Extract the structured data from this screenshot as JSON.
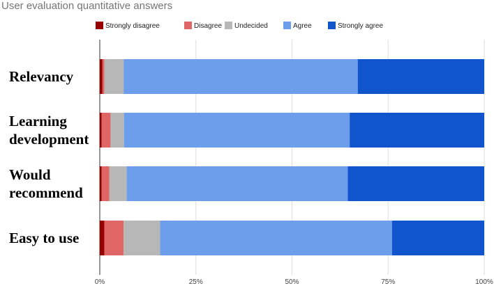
{
  "chart_data": {
    "type": "bar",
    "orientation": "horizontal",
    "stacked": true,
    "percent": true,
    "title": "User evaluation quantitative answers",
    "categories": [
      [
        "Relevancy"
      ],
      [
        "Learning",
        "development"
      ],
      [
        "Would",
        "recommend"
      ],
      [
        "Easy to use"
      ]
    ],
    "series": [
      {
        "name": "Strongly disagree",
        "color": "#990000",
        "values": [
          0.7,
          0.5,
          0.5,
          1.2
        ]
      },
      {
        "name": "Disagree",
        "color": "#e06666",
        "values": [
          0.5,
          2.3,
          2.0,
          5.0
        ]
      },
      {
        "name": "Undecided",
        "color": "#b7b7b7",
        "values": [
          5.0,
          3.5,
          4.5,
          9.5
        ]
      },
      {
        "name": "Agree",
        "color": "#6d9eeb",
        "values": [
          60.9,
          58.7,
          57.5,
          60.3
        ]
      },
      {
        "name": "Strongly agree",
        "color": "#1155cc",
        "values": [
          32.9,
          35.0,
          35.5,
          24.0
        ]
      }
    ],
    "xlim": [
      0,
      100
    ],
    "xticks": [
      "0%",
      "25%",
      "50%",
      "75%",
      "100%"
    ],
    "grid": true,
    "legend_position": "top"
  }
}
